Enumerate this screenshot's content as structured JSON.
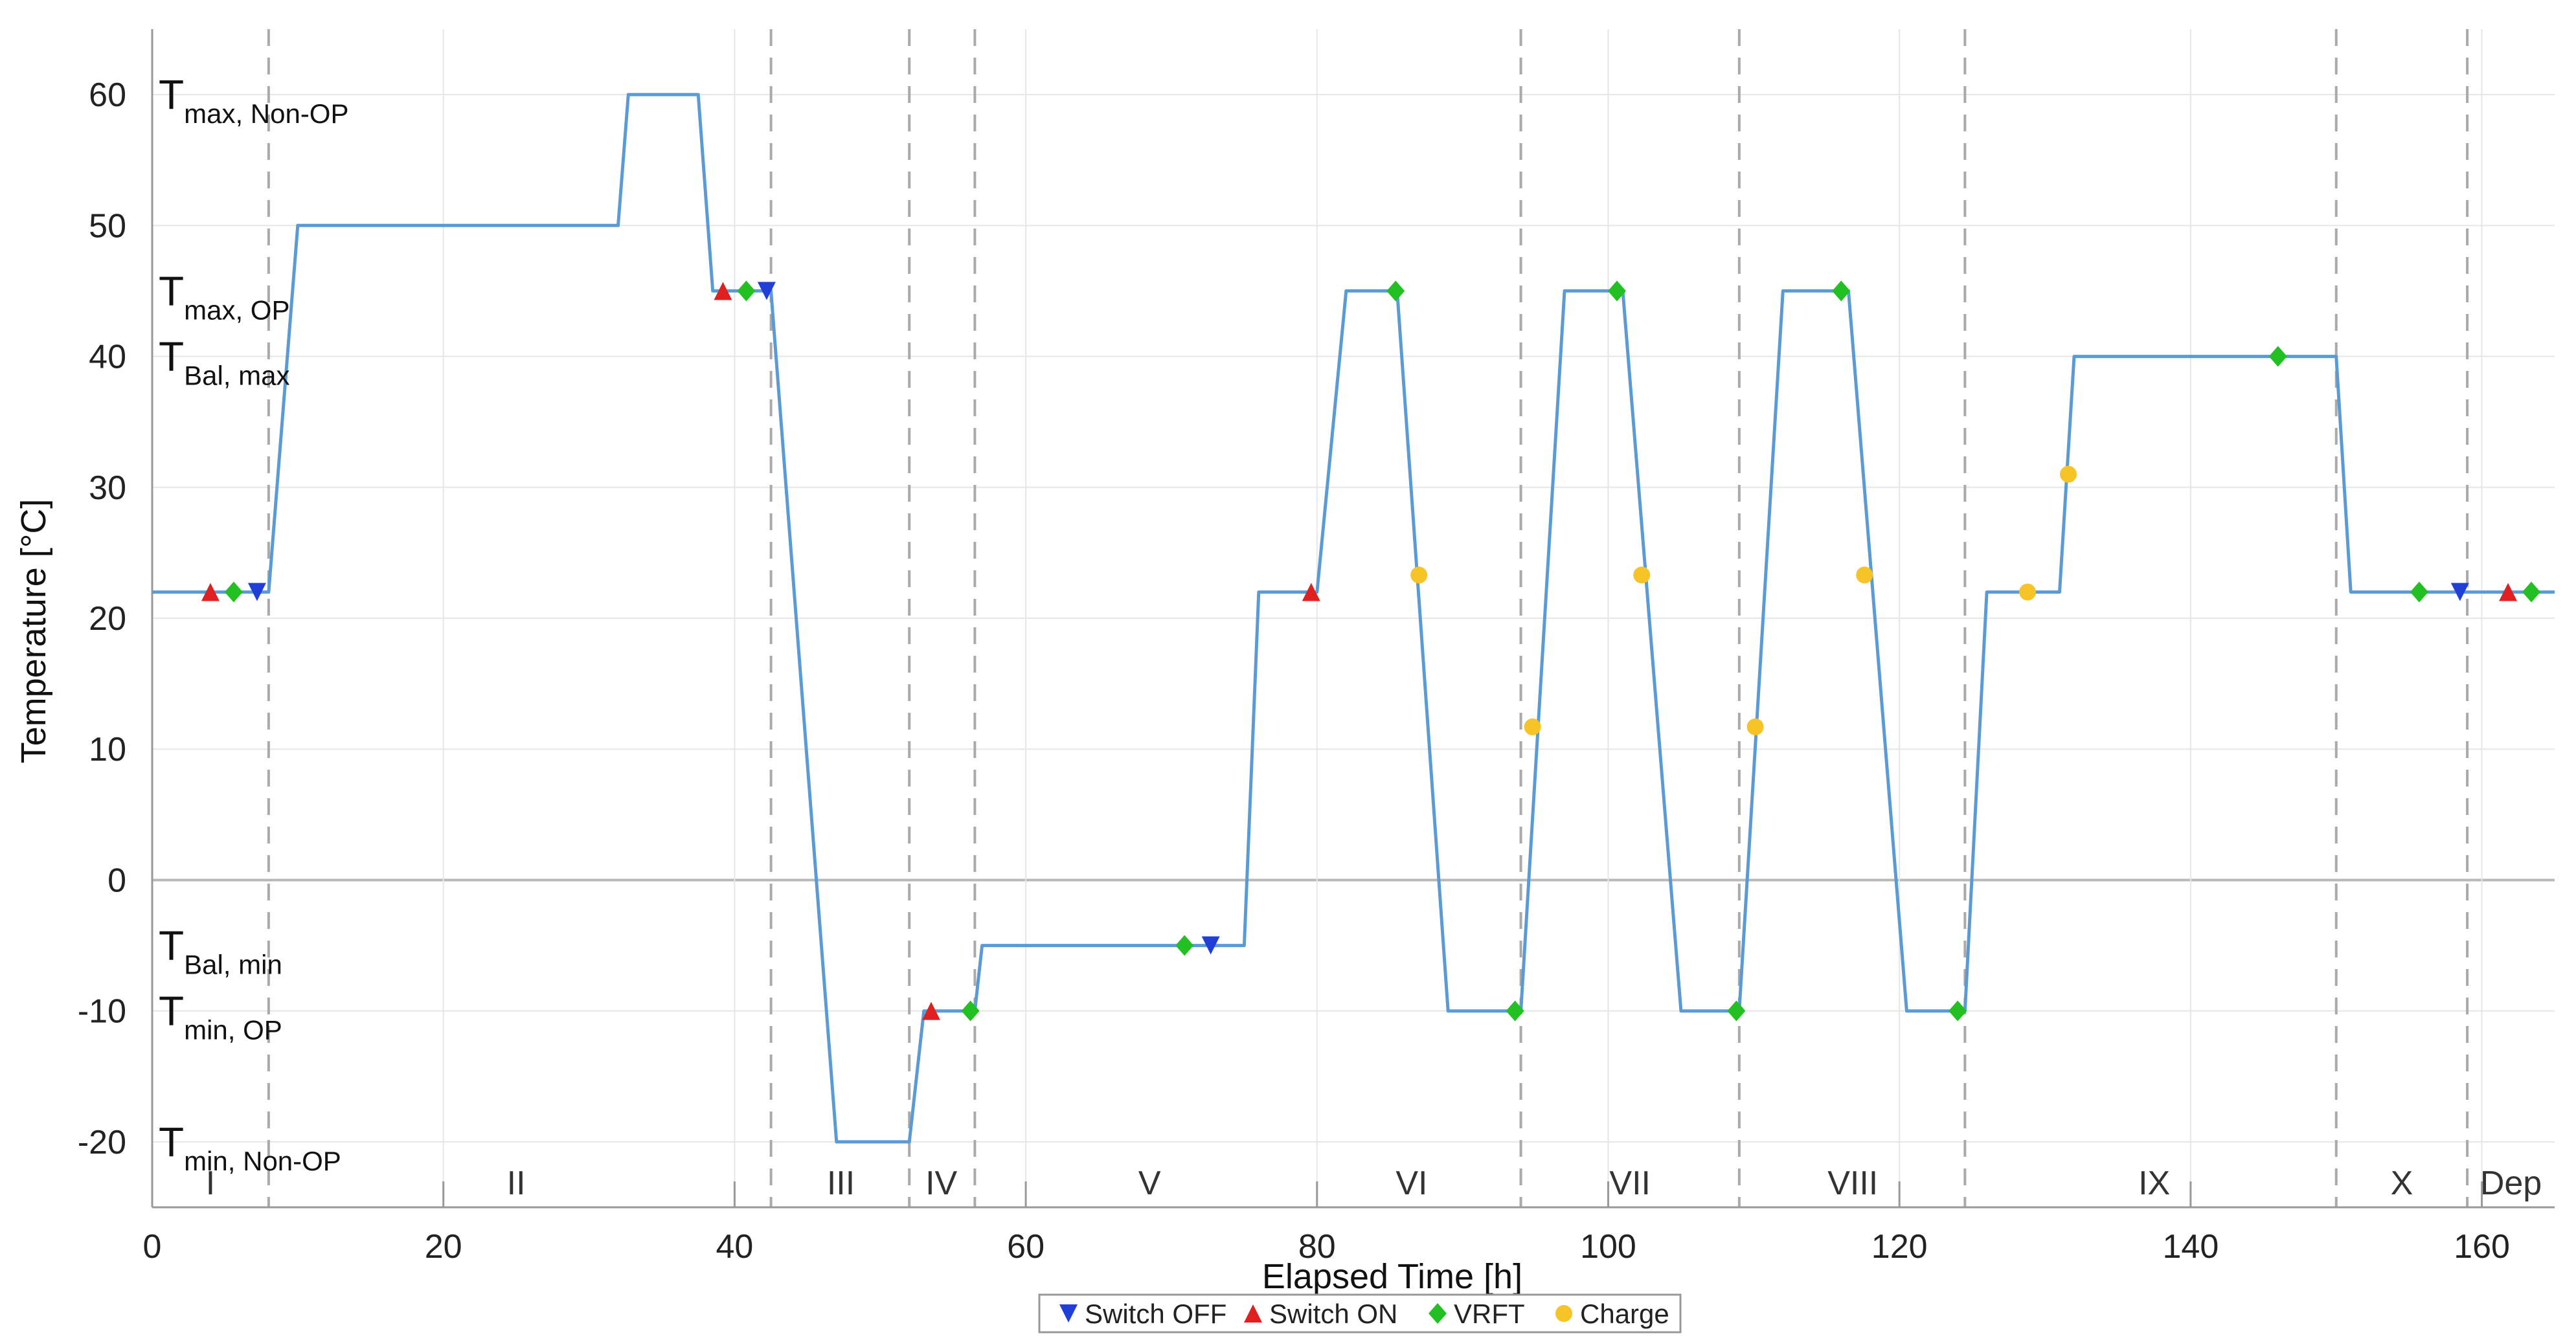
{
  "chart_data": {
    "type": "line",
    "title": "",
    "xlabel": "Elapsed Time [h]",
    "ylabel": "Temperature [°C]",
    "xlim": [
      0,
      165
    ],
    "ylim": [
      -25,
      65
    ],
    "xticks": [
      0,
      20,
      40,
      60,
      80,
      100,
      120,
      140,
      160
    ],
    "yticks": [
      -20,
      -10,
      0,
      10,
      20,
      30,
      40,
      50,
      60
    ],
    "grid": true,
    "colors": {
      "line": "#5b9bd5",
      "switch_off": "#1f3fd6",
      "switch_on": "#e02020",
      "vrft": "#22c022",
      "charge": "#f6c426",
      "boundary": "#aaaaaa",
      "grid": "#e6e6e6"
    },
    "temperature_profile": {
      "x": [
        0,
        8,
        10,
        32,
        32.7,
        37.5,
        38.5,
        42.5,
        47,
        52,
        53,
        56.5,
        57,
        75,
        76,
        80,
        82,
        85.5,
        89,
        94,
        97,
        101,
        105,
        109,
        112,
        116.5,
        120.5,
        124.5,
        126,
        129.5,
        130,
        131,
        132,
        150,
        151,
        165
      ],
      "y": [
        22,
        22,
        50,
        50,
        60,
        60,
        45,
        45,
        -20,
        -20,
        -10,
        -10,
        -5,
        -5,
        22,
        22,
        45,
        45,
        -10,
        -10,
        45,
        45,
        -10,
        -10,
        45,
        45,
        -10,
        -10,
        22,
        22,
        22,
        22,
        40,
        40,
        22,
        22
      ]
    },
    "temperature_labels": [
      {
        "main": "T",
        "sub": "max, Non-OP",
        "y": 60
      },
      {
        "main": "T",
        "sub": "max, OP",
        "y": 45
      },
      {
        "main": "T",
        "sub": "Bal, max",
        "y": 40
      },
      {
        "main": "T",
        "sub": "Bal, min",
        "y": -5
      },
      {
        "main": "T",
        "sub": "min, OP",
        "y": -10
      },
      {
        "main": "T",
        "sub": "min, Non-OP",
        "y": -20
      }
    ],
    "phase_boundaries": [
      8,
      42.5,
      52,
      56.5,
      94,
      109,
      124.5,
      150,
      159
    ],
    "phases": [
      {
        "label": "I",
        "x": 4
      },
      {
        "label": "II",
        "x": 25
      },
      {
        "label": "III",
        "x": 47.3
      },
      {
        "label": "IV",
        "x": 54.2
      },
      {
        "label": "V",
        "x": 68.5
      },
      {
        "label": "VI",
        "x": 86.5
      },
      {
        "label": "VII",
        "x": 101.5
      },
      {
        "label": "VIII",
        "x": 116.8
      },
      {
        "label": "IX",
        "x": 137.5
      },
      {
        "label": "X",
        "x": 154.5
      },
      {
        "label": "Dep",
        "x": 162
      }
    ],
    "markers": {
      "switch_off": [
        [
          7.2,
          22
        ],
        [
          42.2,
          45
        ],
        [
          72.7,
          -5
        ],
        [
          158.5,
          22
        ]
      ],
      "switch_on": [
        [
          4,
          22
        ],
        [
          39.2,
          45
        ],
        [
          53.5,
          -10
        ],
        [
          79.6,
          22
        ],
        [
          161.8,
          22
        ]
      ],
      "vrft": [
        [
          5.6,
          22
        ],
        [
          40.8,
          45
        ],
        [
          56.2,
          -10
        ],
        [
          70.9,
          -5
        ],
        [
          85.4,
          45
        ],
        [
          93.6,
          -10
        ],
        [
          100.6,
          45
        ],
        [
          108.8,
          -10
        ],
        [
          116,
          45
        ],
        [
          124,
          -10
        ],
        [
          146,
          40
        ],
        [
          155.7,
          22
        ],
        [
          163.4,
          22
        ]
      ],
      "charge": [
        [
          87,
          23.3
        ],
        [
          94.8,
          11.7
        ],
        [
          102.3,
          23.3
        ],
        [
          110.1,
          11.7
        ],
        [
          117.6,
          23.3
        ],
        [
          128.8,
          22
        ],
        [
          131.6,
          31
        ]
      ]
    },
    "legend": {
      "placement": "bottom-center",
      "entries": [
        {
          "key": "switch_off",
          "label": "Switch OFF"
        },
        {
          "key": "switch_on",
          "label": "Switch ON"
        },
        {
          "key": "vrft",
          "label": "VRFT"
        },
        {
          "key": "charge",
          "label": "Charge"
        }
      ]
    }
  }
}
